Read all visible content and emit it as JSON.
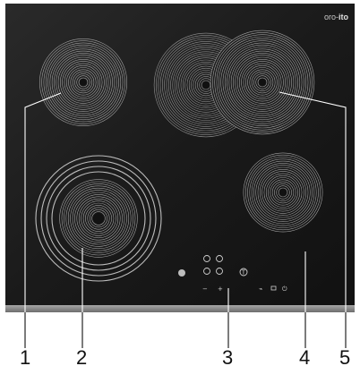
{
  "brand": {
    "prefix": "oro-",
    "name": "ito"
  },
  "callouts": [
    "1",
    "2",
    "3",
    "4",
    "5"
  ],
  "controls": {
    "minus": "−",
    "plus": "+",
    "timer_symbol": "T",
    "lock_symbol": "⌁",
    "power_symbol": "⏻"
  },
  "colors": {
    "glass": "#1b1b1b",
    "ring": "#bdbdbd",
    "frame": "#8e8e8e",
    "callout_line": "#ffffff",
    "label": "#111111"
  }
}
